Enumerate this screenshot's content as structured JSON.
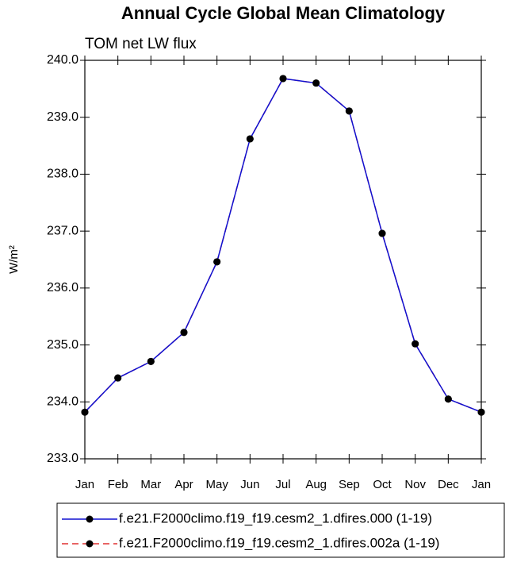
{
  "chart_data": {
    "type": "line",
    "title": "Annual Cycle Global Mean Climatology",
    "subtitle": "TOM net LW flux",
    "y_label": "W/m²",
    "categories": [
      "Jan",
      "Feb",
      "Mar",
      "Apr",
      "May",
      "Jun",
      "Jul",
      "Aug",
      "Sep",
      "Oct",
      "Nov",
      "Dec",
      "Jan"
    ],
    "series": [
      {
        "name": "f.e21.F2000climo.f19_f19.cesm2_1.dfires.002a (1-19)",
        "color": "#e03030",
        "dash": true,
        "values": [
          233.82,
          234.42,
          234.71,
          235.22,
          236.46,
          238.62,
          239.68,
          239.6,
          239.11,
          236.96,
          235.02,
          234.05,
          233.82
        ]
      },
      {
        "name": "f.e21.F2000climo.f19_f19.cesm2_1.dfires.000 (1-19)",
        "color": "#1010d0",
        "dash": false,
        "values": [
          233.82,
          234.42,
          234.71,
          235.22,
          236.46,
          238.62,
          239.68,
          239.6,
          239.11,
          236.96,
          235.02,
          234.05,
          233.82
        ]
      }
    ],
    "ylim": [
      233,
      240
    ],
    "yticks": [
      {
        "value": 233,
        "label": "233.0"
      },
      {
        "value": 234,
        "label": "234.0"
      },
      {
        "value": 235,
        "label": "235.0"
      },
      {
        "value": 236,
        "label": "236.0"
      },
      {
        "value": 237,
        "label": "237.0"
      },
      {
        "value": 238,
        "label": "238.0"
      },
      {
        "value": 239,
        "label": "239.0"
      },
      {
        "value": 240,
        "label": "240.0"
      }
    ],
    "grid": false
  }
}
